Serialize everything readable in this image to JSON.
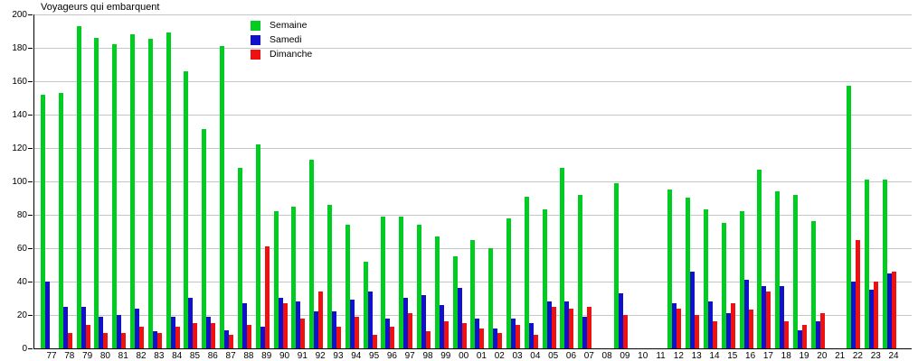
{
  "chart_data": {
    "type": "bar",
    "title": "Voyageurs qui embarquent",
    "categories": [
      "77",
      "78",
      "79",
      "80",
      "81",
      "82",
      "83",
      "84",
      "85",
      "86",
      "87",
      "88",
      "89",
      "90",
      "91",
      "92",
      "93",
      "94",
      "95",
      "96",
      "97",
      "98",
      "99",
      "00",
      "01",
      "02",
      "03",
      "04",
      "05",
      "06",
      "07",
      "08",
      "09",
      "10",
      "11",
      "12",
      "13",
      "14",
      "15",
      "16",
      "17",
      "18",
      "19",
      "20",
      "21",
      "22",
      "23",
      "24"
    ],
    "series": [
      {
        "name": "Semaine",
        "color": "#00CC22",
        "values": [
          152,
          153,
          193,
          186,
          182,
          188,
          185,
          189,
          166,
          131,
          181,
          108,
          122,
          82,
          85,
          113,
          86,
          74,
          52,
          79,
          79,
          74,
          67,
          55,
          65,
          60,
          78,
          91,
          83,
          108,
          92,
          null,
          99,
          null,
          null,
          95,
          90,
          83,
          75,
          82,
          107,
          94,
          92,
          76,
          null,
          157,
          101,
          101
        ]
      },
      {
        "name": "Samedi",
        "color": "#1111CC",
        "values": [
          40,
          25,
          25,
          19,
          20,
          24,
          10,
          19,
          30,
          19,
          11,
          27,
          13,
          30,
          28,
          22,
          22,
          29,
          34,
          18,
          30,
          32,
          26,
          36,
          18,
          12,
          18,
          15,
          28,
          28,
          19,
          null,
          33,
          null,
          null,
          27,
          46,
          28,
          21,
          41,
          37,
          37,
          11,
          16,
          null,
          40,
          35,
          45
        ]
      },
      {
        "name": "Dimanche",
        "color": "#EE1111",
        "values": [
          0,
          9,
          14,
          9,
          9,
          13,
          9,
          13,
          15,
          15,
          8,
          14,
          61,
          27,
          18,
          34,
          13,
          19,
          8,
          13,
          21,
          10,
          16,
          15,
          12,
          9,
          14,
          8,
          25,
          24,
          25,
          null,
          20,
          null,
          null,
          24,
          20,
          16,
          27,
          23,
          34,
          16,
          14,
          21,
          null,
          65,
          40,
          46
        ]
      }
    ],
    "ylim": [
      0,
      200
    ],
    "yticks": [
      0,
      20,
      40,
      60,
      80,
      100,
      120,
      140,
      160,
      180,
      200
    ],
    "grid": true,
    "legend_position": "inside-top-left",
    "gridline_color": "#c6c6c6",
    "axis_color": "#000000",
    "background": "#ffffff"
  }
}
